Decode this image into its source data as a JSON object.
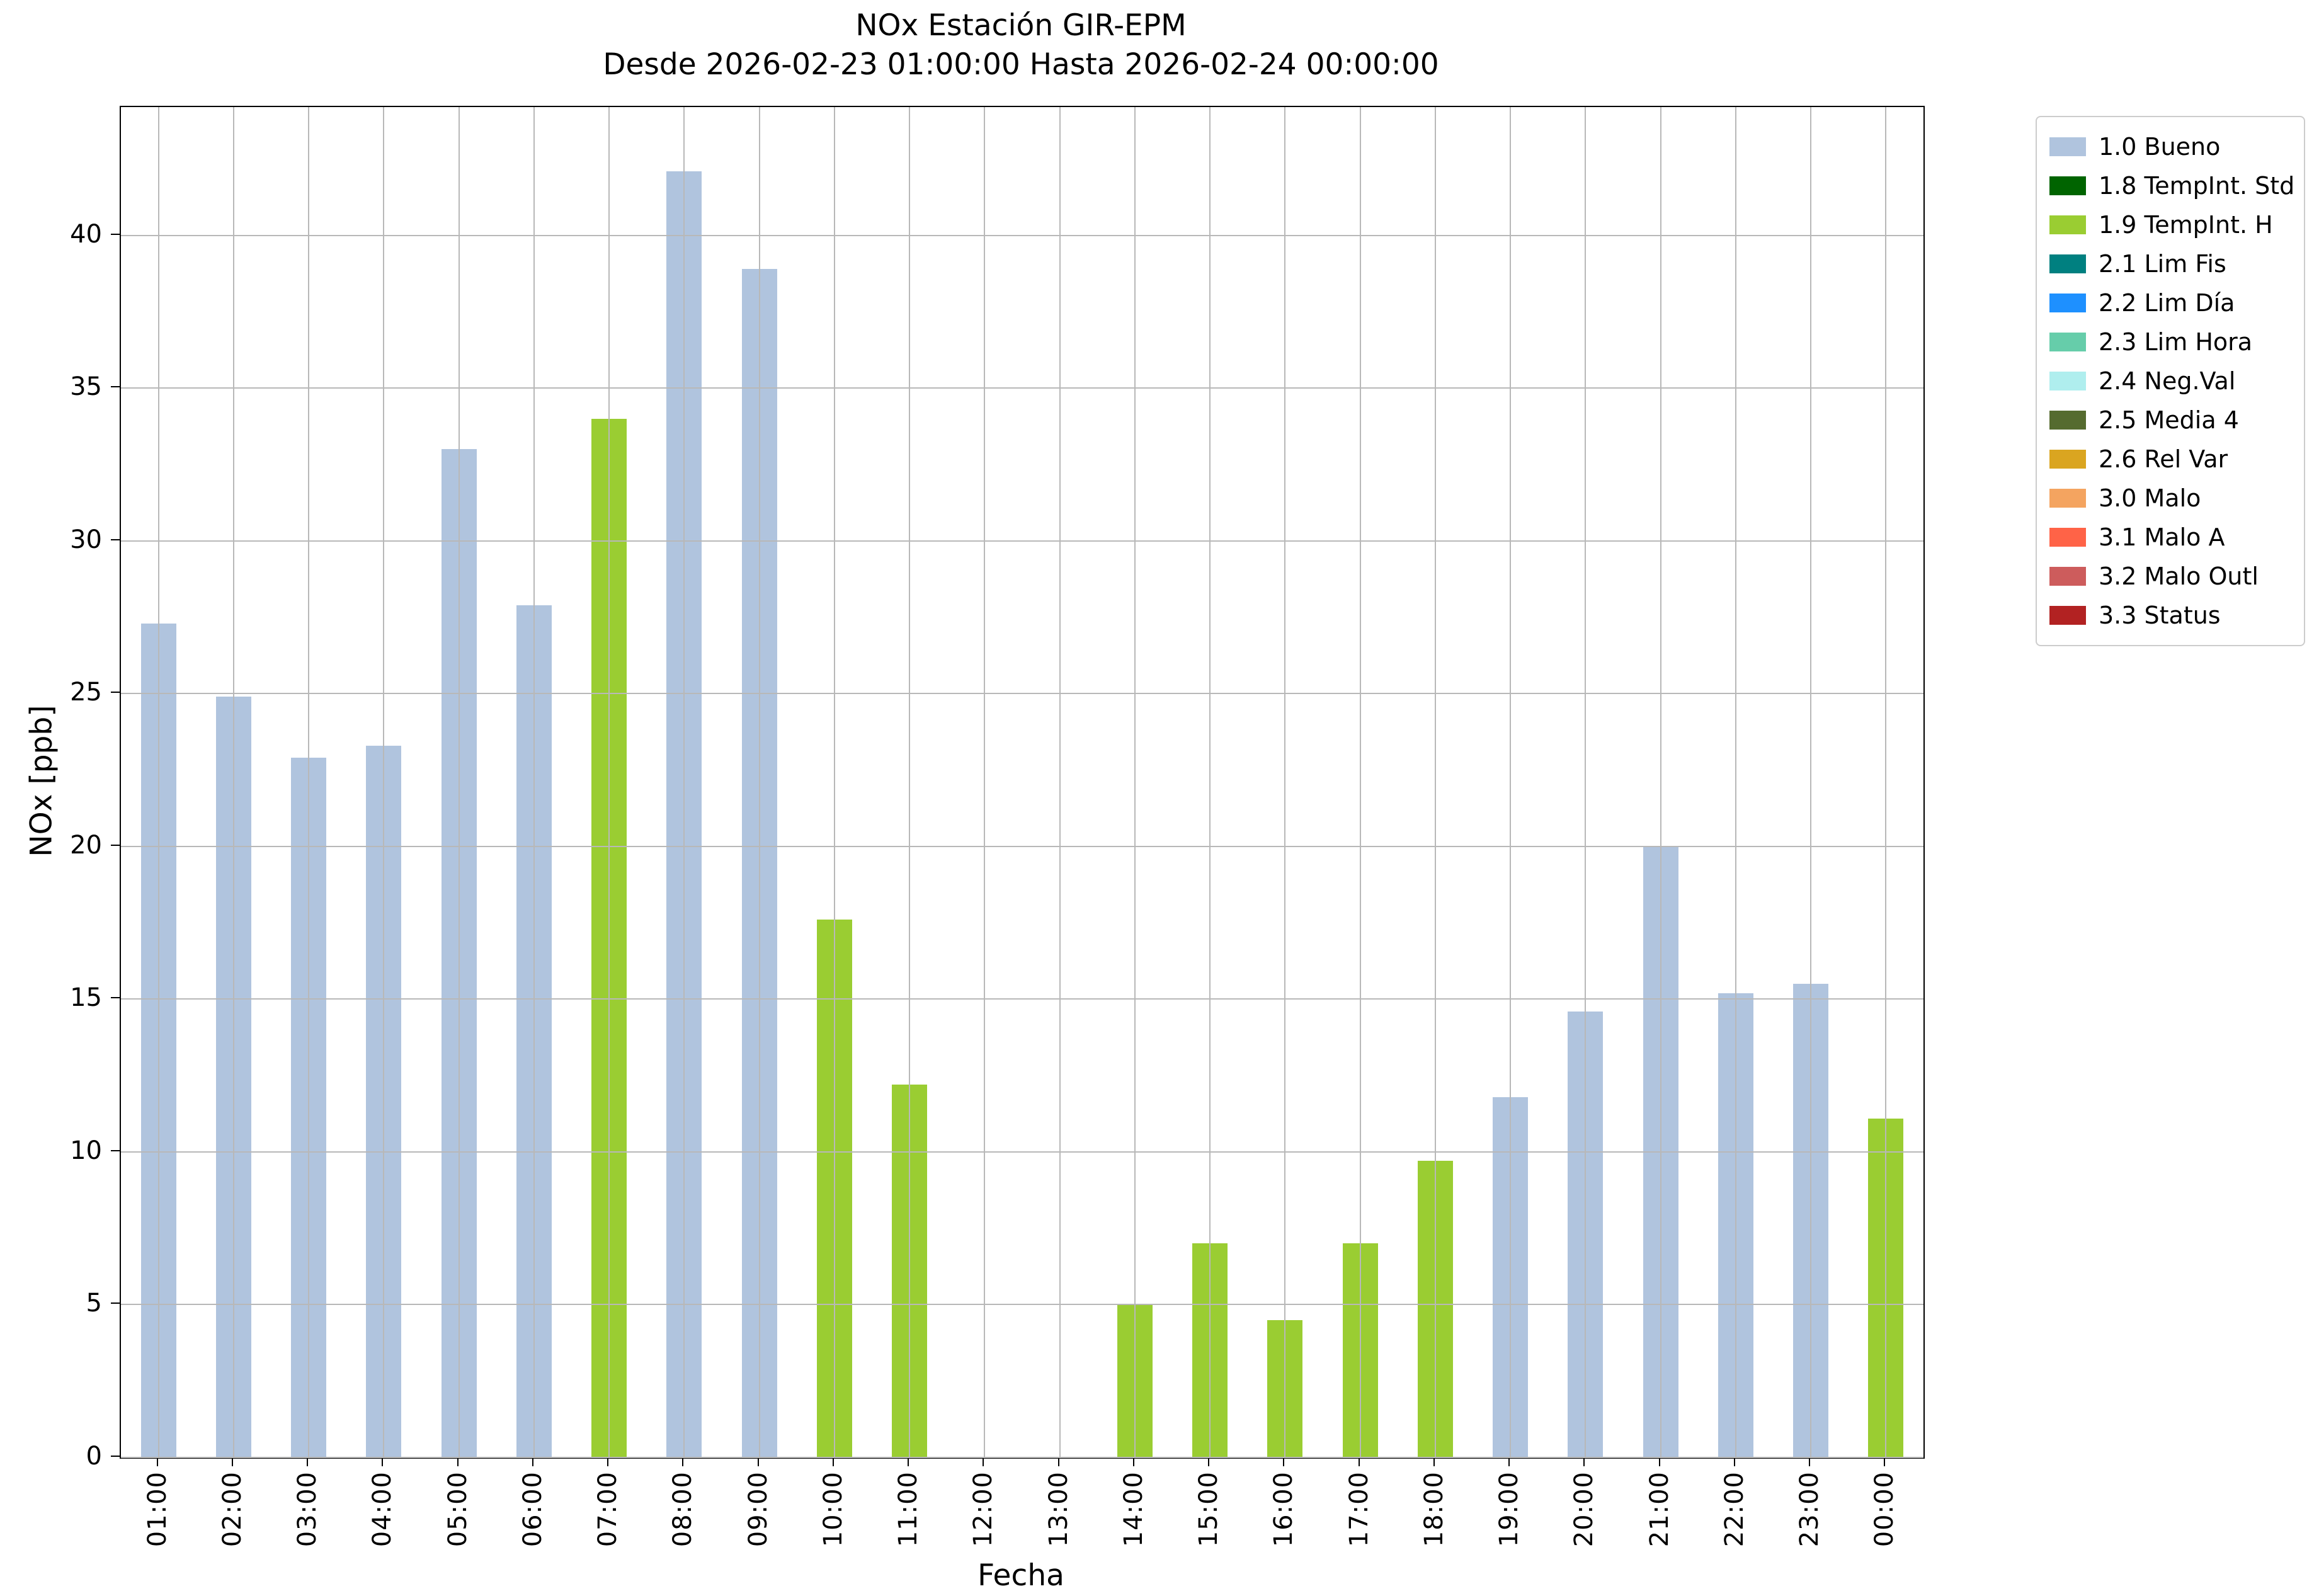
{
  "chart_data": {
    "type": "bar",
    "title": "NOx Estación GIR-EPM",
    "subtitle": "Desde 2026-02-23 01:00:00 Hasta 2026-02-24 00:00:00",
    "xlabel": "Fecha",
    "ylabel": "NOx [ppb]",
    "ylim": [
      0,
      44.2
    ],
    "yticks": [
      0,
      5,
      10,
      15,
      20,
      25,
      30,
      35,
      40
    ],
    "grid": true,
    "legend_position": "upper right outside",
    "categories": [
      "01:00",
      "02:00",
      "03:00",
      "04:00",
      "05:00",
      "06:00",
      "07:00",
      "08:00",
      "09:00",
      "10:00",
      "11:00",
      "12:00",
      "13:00",
      "14:00",
      "15:00",
      "16:00",
      "17:00",
      "18:00",
      "19:00",
      "20:00",
      "21:00",
      "22:00",
      "23:00",
      "00:00"
    ],
    "values": [
      27.3,
      24.9,
      22.9,
      23.3,
      33.0,
      27.9,
      34.0,
      42.1,
      38.9,
      17.6,
      12.2,
      0,
      0,
      5.0,
      7.0,
      4.5,
      7.0,
      9.7,
      11.8,
      14.6,
      20.0,
      15.2,
      15.5,
      11.1
    ],
    "statuses": [
      "1.0 Bueno",
      "1.0 Bueno",
      "1.0 Bueno",
      "1.0 Bueno",
      "1.0 Bueno",
      "1.0 Bueno",
      "1.9 TempInt. H",
      "1.0 Bueno",
      "1.0 Bueno",
      "1.9 TempInt. H",
      "1.9 TempInt. H",
      null,
      null,
      "1.9 TempInt. H",
      "1.9 TempInt. H",
      "1.9 TempInt. H",
      "1.9 TempInt. H",
      "1.9 TempInt. H",
      "1.0 Bueno",
      "1.0 Bueno",
      "1.0 Bueno",
      "1.0 Bueno",
      "1.0 Bueno",
      "1.9 TempInt. H"
    ],
    "legend": [
      {
        "label": "1.0 Bueno",
        "color": "#B0C4DE"
      },
      {
        "label": "1.8 TempInt. Std",
        "color": "#006400"
      },
      {
        "label": "1.9 TempInt. H",
        "color": "#9ACD32"
      },
      {
        "label": "2.1 Lim Fis",
        "color": "#008080"
      },
      {
        "label": "2.2 Lim Día",
        "color": "#1E90FF"
      },
      {
        "label": "2.3 Lim Hora",
        "color": "#66CDAA"
      },
      {
        "label": "2.4 Neg.Val",
        "color": "#AFEEEE"
      },
      {
        "label": "2.5 Media 4",
        "color": "#556B2F"
      },
      {
        "label": "2.6 Rel Var",
        "color": "#DAA520"
      },
      {
        "label": "3.0 Malo",
        "color": "#F4A460"
      },
      {
        "label": "3.1 Malo A",
        "color": "#FF6347"
      },
      {
        "label": "3.2 Malo Outl",
        "color": "#CD5C5C"
      },
      {
        "label": "3.3 Status",
        "color": "#B22222"
      }
    ]
  }
}
